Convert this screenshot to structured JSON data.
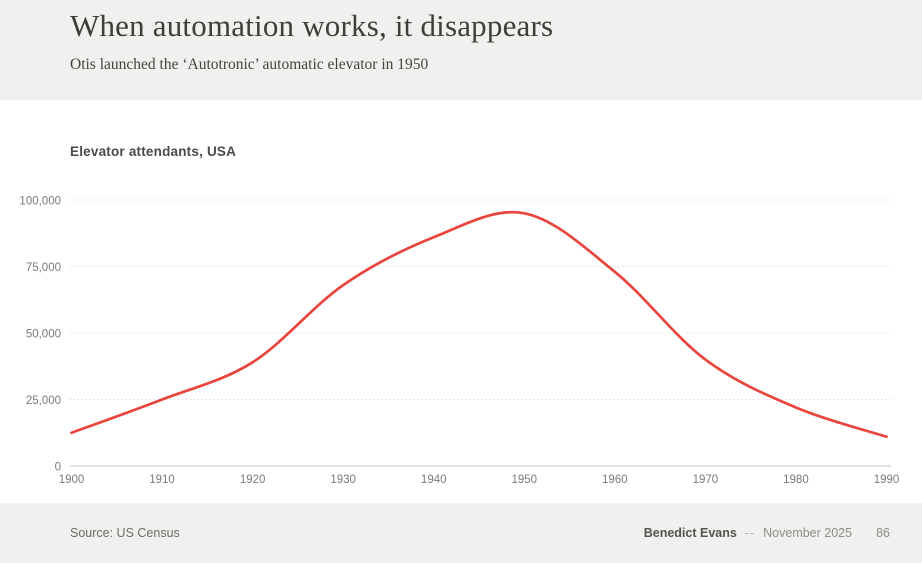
{
  "header": {
    "title": "When automation works, it disappears",
    "subtitle": "Otis launched the ‘Autotronic’ automatic elevator in 1950"
  },
  "chart_data": {
    "type": "line",
    "title": "Elevator attendants, USA",
    "series": [
      {
        "name": "Elevator attendants",
        "x": [
          1900,
          1910,
          1920,
          1930,
          1940,
          1950,
          1960,
          1970,
          1980,
          1990
        ],
        "values": [
          12500,
          25000,
          39000,
          68000,
          86000,
          95000,
          73000,
          40000,
          22000,
          11000
        ]
      }
    ],
    "xlabel": "",
    "ylabel": "",
    "xlim": [
      1900,
      1990
    ],
    "ylim": [
      0,
      100000
    ],
    "xticks": [
      1900,
      1910,
      1920,
      1930,
      1940,
      1950,
      1960,
      1970,
      1980,
      1990
    ],
    "xtick_labels": [
      "1900",
      "1910",
      "1920",
      "1930",
      "1940",
      "1950",
      "1960",
      "1970",
      "1980",
      "1990"
    ],
    "yticks": [
      0,
      25000,
      50000,
      75000,
      100000
    ],
    "ytick_labels": [
      "0",
      "25,000",
      "50,000",
      "75,000",
      "100,000"
    ],
    "grid": "horizontal-dotted",
    "legend": "none",
    "line_color": "#e8453d",
    "annotations": {
      "peak_value": "~95,000 around 1950"
    }
  },
  "footer": {
    "source": "Source: US Census",
    "author": "Benedict Evans",
    "separator": "--",
    "date": "November 2025",
    "page": "86"
  },
  "colors": {
    "accent": "#e8453d",
    "panel_background": "#f0f0ee",
    "grid_dotted": "#d4d3d0",
    "axis_line": "#c7c6c2",
    "tick_label": "#7b7a75"
  }
}
